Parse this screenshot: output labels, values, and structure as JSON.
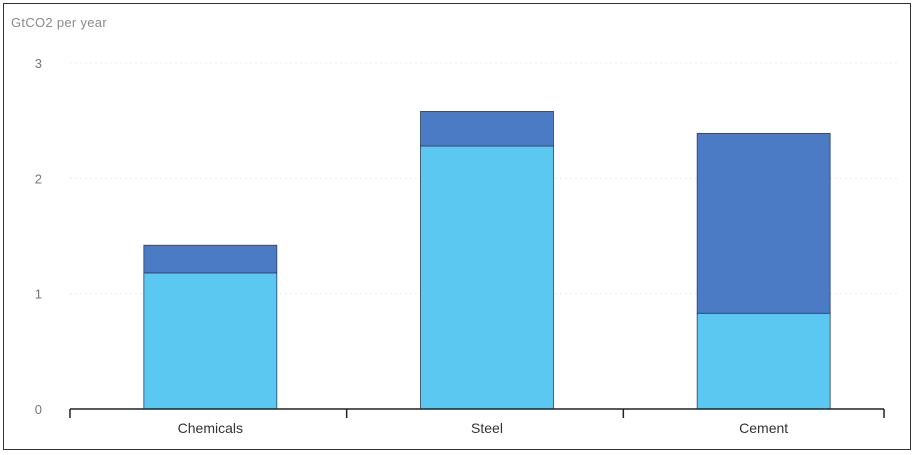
{
  "chart_data": {
    "type": "bar",
    "stacked": true,
    "unit_label": "GtCO2 per year",
    "categories": [
      "Chemicals",
      "Steel",
      "Cement"
    ],
    "series": [
      {
        "values": [
          1.18,
          2.28,
          0.83
        ],
        "color": "#5bc8f1"
      },
      {
        "values": [
          0.24,
          0.3,
          1.56
        ],
        "color": "#4a7bc4"
      }
    ],
    "y_ticks": [
      "0",
      "1",
      "2",
      "3"
    ],
    "ylim": [
      0,
      3
    ],
    "grid": true
  }
}
